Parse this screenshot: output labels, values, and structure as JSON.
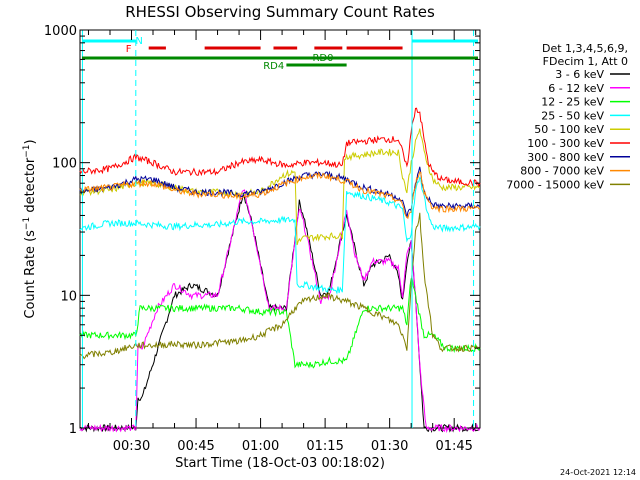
{
  "chart_data": {
    "type": "line",
    "title": "RHESSI Observing Summary Count Rates",
    "xlabel": "Start Time (18-Oct-03 00:18:02)",
    "ylabel_prefix": "Count Rate (s",
    "ylabel_sup": "−1",
    "ylabel_mid": " detector",
    "ylabel_suffix": ")",
    "y_scale": "log",
    "ylim": [
      1,
      1000
    ],
    "xlim_min": [
      18.03,
      111
    ],
    "y_ticks": [
      {
        "value": 1,
        "label": "1"
      },
      {
        "value": 10,
        "label": "10"
      },
      {
        "value": 100,
        "label": "100"
      },
      {
        "value": 1000,
        "label": "1000"
      }
    ],
    "x_ticks": [
      {
        "value": 30,
        "label": "00:30"
      },
      {
        "value": 45,
        "label": "00:45"
      },
      {
        "value": 60,
        "label": "01:00"
      },
      {
        "value": 75,
        "label": "01:15"
      },
      {
        "value": 90,
        "label": "01:30"
      },
      {
        "value": 105,
        "label": "01:45"
      }
    ],
    "legend_header": [
      "Det 1,3,4,5,6,9,",
      "FDecim 1, Att 0"
    ],
    "legend_placement": "right",
    "series": [
      {
        "name": "3 - 6 keV",
        "color": "#000000",
        "x": [
          18,
          31,
          31.5,
          32.5,
          40,
          44,
          50,
          53,
          56,
          58,
          62,
          66,
          69,
          70,
          72,
          74,
          76,
          79,
          80,
          82,
          84,
          86,
          88,
          90,
          92,
          93,
          94,
          95,
          96,
          97,
          98,
          98.5,
          99.5,
          101,
          111
        ],
        "y": [
          1,
          1,
          1.7,
          1.7,
          10,
          12,
          10,
          25,
          60,
          35,
          8,
          8,
          50,
          40,
          20,
          10,
          11,
          30,
          40,
          22,
          12,
          17,
          18,
          20,
          14,
          9,
          18,
          25,
          10,
          3,
          1,
          1,
          1,
          1,
          1
        ]
      },
      {
        "name": "6 - 12 keV",
        "color": "#ff00ff",
        "x": [
          18,
          31,
          31.5,
          32.5,
          36,
          40,
          44,
          50,
          53,
          56,
          58,
          62,
          66,
          69,
          70,
          72,
          74,
          76,
          79,
          80,
          82,
          84,
          86,
          88,
          90,
          92,
          93,
          94,
          95,
          96,
          97,
          98,
          98.5,
          99.5,
          101,
          111
        ],
        "y": [
          1,
          1,
          4,
          4,
          8,
          12,
          10,
          10,
          25,
          65,
          35,
          8,
          8,
          45,
          35,
          18,
          9,
          10,
          30,
          45,
          20,
          13,
          18,
          18,
          18,
          16,
          10,
          20,
          25,
          10,
          3,
          1.4,
          1,
          1,
          1,
          1
        ]
      },
      {
        "name": "12 - 25 keV",
        "color": "#00ff00",
        "x": [
          18,
          31,
          32,
          35,
          40,
          45,
          50,
          55,
          60,
          66,
          68,
          70,
          72,
          76,
          80,
          84,
          88,
          92,
          93,
          94,
          95,
          96,
          97,
          98,
          100,
          103,
          111
        ],
        "y": [
          5,
          5,
          8,
          8,
          8,
          8,
          8,
          8,
          7.5,
          7.5,
          3,
          3,
          3,
          3.2,
          3.2,
          8,
          8,
          8,
          8,
          6,
          14,
          10,
          7,
          5,
          5,
          4,
          4
        ]
      },
      {
        "name": "25 - 50 keV",
        "color": "#00ffff",
        "x": [
          18,
          25,
          31,
          35,
          40,
          45,
          50,
          55,
          60,
          65,
          68,
          68.5,
          70,
          76,
          79,
          80,
          85,
          90,
          93,
          94,
          95,
          96,
          97,
          98,
          99,
          100,
          102,
          111
        ],
        "y": [
          32,
          35,
          35,
          34,
          33,
          34,
          34,
          36,
          36,
          37,
          37,
          12,
          12,
          11,
          11,
          60,
          55,
          50,
          45,
          25,
          30,
          60,
          80,
          55,
          40,
          33,
          32,
          33
        ]
      },
      {
        "name": "50 - 100 keV",
        "color": "#cccc00",
        "x": [
          18,
          25,
          31,
          35,
          40,
          45,
          50,
          55,
          60,
          65,
          68,
          68.5,
          70,
          76,
          79,
          79.5,
          84,
          88,
          92,
          93,
          94,
          95,
          96,
          97,
          98,
          100,
          102,
          111
        ],
        "y": [
          60,
          62,
          70,
          70,
          65,
          60,
          60,
          58,
          60,
          80,
          85,
          25,
          27,
          28,
          28,
          110,
          115,
          120,
          120,
          80,
          60,
          100,
          140,
          180,
          120,
          75,
          65,
          65
        ]
      },
      {
        "name": "100 - 300 keV",
        "color": "#ff0000",
        "x": [
          18,
          25,
          31,
          35,
          40,
          45,
          50,
          55,
          60,
          63,
          66,
          70,
          75,
          79,
          80,
          84,
          88,
          92,
          93,
          94,
          95,
          96,
          97,
          98,
          99,
          100,
          102,
          105,
          111
        ],
        "y": [
          85,
          90,
          110,
          100,
          85,
          85,
          85,
          100,
          105,
          100,
          95,
          100,
          100,
          95,
          140,
          145,
          150,
          150,
          120,
          90,
          170,
          260,
          240,
          150,
          100,
          85,
          75,
          72,
          70
        ]
      },
      {
        "name": "300 - 800 keV",
        "color": "#000099",
        "x": [
          18,
          25,
          31,
          35,
          40,
          45,
          50,
          55,
          60,
          65,
          70,
          75,
          80,
          84,
          88,
          92,
          93,
          94,
          95,
          96,
          97,
          98,
          100,
          102,
          111
        ],
        "y": [
          60,
          65,
          75,
          75,
          65,
          60,
          60,
          58,
          60,
          70,
          80,
          82,
          75,
          65,
          60,
          55,
          50,
          40,
          45,
          70,
          90,
          60,
          48,
          47,
          47
        ]
      },
      {
        "name": "800 - 7000 keV",
        "color": "#ff8800",
        "x": [
          18,
          25,
          31,
          35,
          40,
          45,
          50,
          55,
          60,
          65,
          70,
          75,
          80,
          84,
          88,
          92,
          93,
          94,
          95,
          96,
          97,
          98,
          100,
          102,
          111
        ],
        "y": [
          62,
          65,
          70,
          70,
          62,
          58,
          58,
          55,
          58,
          68,
          78,
          80,
          72,
          62,
          58,
          52,
          48,
          38,
          43,
          68,
          90,
          60,
          46,
          45,
          45
        ]
      },
      {
        "name": "7000 - 15000 keV",
        "color": "#808000",
        "x": [
          18,
          25,
          31,
          35,
          40,
          45,
          50,
          55,
          60,
          65,
          68,
          70,
          75,
          80,
          84,
          88,
          92,
          93,
          94,
          95,
          96,
          97,
          98,
          100,
          102,
          111
        ],
        "y": [
          3.5,
          3.7,
          4.2,
          4.2,
          4.3,
          4.2,
          4.4,
          4.5,
          5,
          6,
          8,
          9,
          10,
          9,
          8,
          7,
          6,
          5,
          4,
          12,
          30,
          40,
          15,
          5,
          4,
          4
        ]
      }
    ],
    "annotations": [
      {
        "text": "N",
        "color": "#00ffff"
      },
      {
        "text": "F",
        "color": "#ff0000"
      },
      {
        "text": "RD0",
        "color": "#008800"
      },
      {
        "text": "RD4",
        "color": "#008800"
      }
    ]
  },
  "footer_timestamp": "24-Oct-2021 12:14"
}
